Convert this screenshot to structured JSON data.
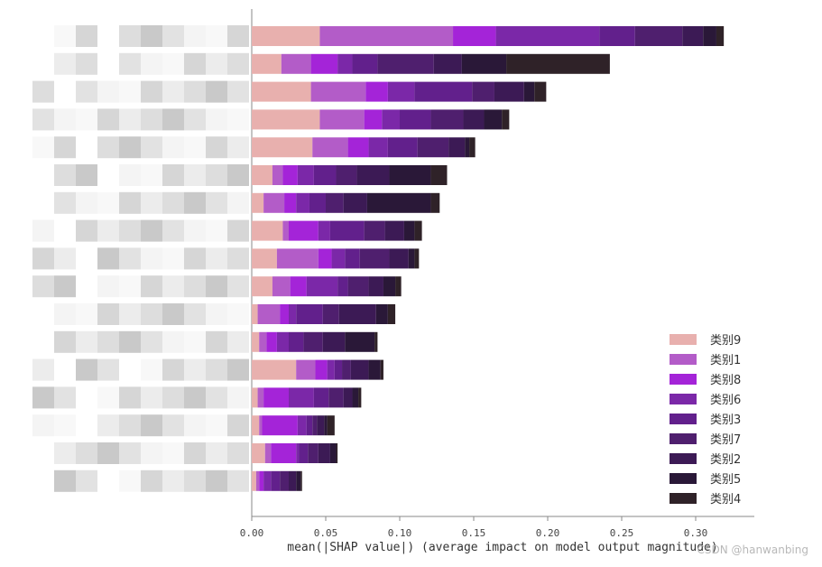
{
  "chart_data": {
    "type": "bar",
    "orientation": "horizontal",
    "stacked": true,
    "xlabel": "mean(|SHAP value|) (average impact on model output magnitude)",
    "xlim": [
      0,
      0.34
    ],
    "xticks": [
      0.0,
      0.05,
      0.1,
      0.15,
      0.2,
      0.25,
      0.3
    ],
    "xtick_labels": [
      "0.00",
      "0.05",
      "0.10",
      "0.15",
      "0.20",
      "0.25",
      "0.30"
    ],
    "grid": false,
    "legend_position": "lower-right",
    "ytick_labels_obscured": true,
    "series": [
      {
        "name": "类别9",
        "color": "#e8b0ae",
        "values": [
          0.046,
          0.02,
          0.04,
          0.046,
          0.041,
          0.014,
          0.008,
          0.021,
          0.017,
          0.014,
          0.004,
          0.005,
          0.03,
          0.004,
          0.005,
          0.009,
          0.003
        ]
      },
      {
        "name": "类别1",
        "color": "#b35cc8",
        "values": [
          0.09,
          0.02,
          0.037,
          0.03,
          0.024,
          0.007,
          0.014,
          0.004,
          0.028,
          0.012,
          0.015,
          0.005,
          0.013,
          0.004,
          0.002,
          0.004,
          0.002
        ]
      },
      {
        "name": "类别8",
        "color": "#a424d8",
        "values": [
          0.029,
          0.018,
          0.015,
          0.012,
          0.014,
          0.01,
          0.008,
          0.02,
          0.009,
          0.011,
          0.006,
          0.007,
          0.008,
          0.017,
          0.024,
          0.017,
          0.003
        ]
      },
      {
        "name": "类别6",
        "color": "#7b28a8",
        "values": [
          0.07,
          0.01,
          0.018,
          0.012,
          0.013,
          0.011,
          0.009,
          0.008,
          0.009,
          0.021,
          0.005,
          0.008,
          0.005,
          0.017,
          0.006,
          0.002,
          0.005
        ]
      },
      {
        "name": "类别3",
        "color": "#62208c",
        "values": [
          0.024,
          0.017,
          0.039,
          0.021,
          0.02,
          0.015,
          0.011,
          0.023,
          0.01,
          0.007,
          0.018,
          0.01,
          0.005,
          0.01,
          0.004,
          0.006,
          0.006
        ]
      },
      {
        "name": "类别7",
        "color": "#4f1f6e",
        "values": [
          0.032,
          0.038,
          0.015,
          0.022,
          0.021,
          0.014,
          0.012,
          0.014,
          0.02,
          0.014,
          0.011,
          0.013,
          0.006,
          0.01,
          0.003,
          0.007,
          0.006
        ]
      },
      {
        "name": "类别2",
        "color": "#3c1a55",
        "values": [
          0.014,
          0.019,
          0.02,
          0.014,
          0.011,
          0.022,
          0.016,
          0.013,
          0.013,
          0.01,
          0.025,
          0.015,
          0.012,
          0.006,
          0.005,
          0.008,
          0.005
        ]
      },
      {
        "name": "类别5",
        "color": "#2a1838",
        "values": [
          0.009,
          0.03,
          0.007,
          0.012,
          0.003,
          0.028,
          0.043,
          0.007,
          0.004,
          0.008,
          0.008,
          0.02,
          0.008,
          0.004,
          0.002,
          0.004,
          0.003
        ]
      },
      {
        "name": "类别4",
        "color": "#2f2228",
        "values": [
          0.005,
          0.07,
          0.008,
          0.005,
          0.004,
          0.011,
          0.006,
          0.005,
          0.003,
          0.004,
          0.005,
          0.002,
          0.002,
          0.002,
          0.005,
          0.001,
          0.001
        ]
      }
    ]
  },
  "legend_order": [
    "类别9",
    "类别1",
    "类别8",
    "类别6",
    "类别3",
    "类别7",
    "类别2",
    "类别5",
    "类别4"
  ],
  "watermark": "CSDN @hanwanbing"
}
